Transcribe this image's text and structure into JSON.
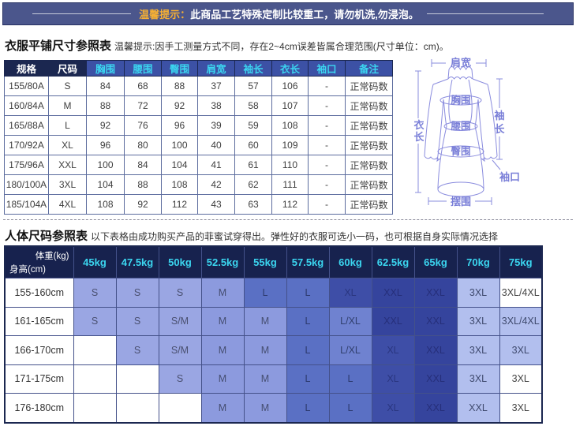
{
  "banner": {
    "highlight": "温馨提示：",
    "text": "此商品工艺特殊定制比较重工，请勿机洗,勿浸泡。"
  },
  "flat_size_section": {
    "title": "衣服平铺尺寸参照表",
    "note": "温馨提示:因手工测量方式不同，存在2~4cm误差皆属合理范围(尺寸单位：cm)。",
    "columns": [
      "规格",
      "尺码",
      "胸围",
      "腰围",
      "臀围",
      "肩宽",
      "袖长",
      "衣长",
      "袖口",
      "备注"
    ],
    "rows": [
      [
        "155/80A",
        "S",
        "84",
        "68",
        "88",
        "37",
        "57",
        "106",
        "-",
        "正常码数"
      ],
      [
        "160/84A",
        "M",
        "88",
        "72",
        "92",
        "38",
        "58",
        "107",
        "-",
        "正常码数"
      ],
      [
        "165/88A",
        "L",
        "92",
        "76",
        "96",
        "39",
        "59",
        "108",
        "-",
        "正常码数"
      ],
      [
        "170/92A",
        "XL",
        "96",
        "80",
        "100",
        "40",
        "60",
        "109",
        "-",
        "正常码数"
      ],
      [
        "175/96A",
        "XXL",
        "100",
        "84",
        "104",
        "41",
        "61",
        "110",
        "-",
        "正常码数"
      ],
      [
        "180/100A",
        "3XL",
        "104",
        "88",
        "108",
        "42",
        "62",
        "111",
        "-",
        "正常码数"
      ],
      [
        "185/104A",
        "4XL",
        "108",
        "92",
        "112",
        "43",
        "63",
        "112",
        "-",
        "正常码数"
      ]
    ]
  },
  "diagram": {
    "labels": {
      "shoulder": "肩宽",
      "bust": "胸围",
      "waist": "腰围",
      "hip": "臀围",
      "cuff": "袖口",
      "hem": "摆围",
      "length_chars": [
        "衣",
        "长"
      ],
      "sleeve_chars": [
        "袖",
        "长"
      ]
    },
    "stroke_color": "#8a8cde"
  },
  "body_size_section": {
    "title": "人体尺码参照表",
    "note": "以下表格由成功购买产品的菲蜜试穿得出。弹性好的衣服可选小一码，也可根据自身实际情况选择",
    "corner": {
      "top": "体重(kg)",
      "bottom": "身高(cm)"
    },
    "weights": [
      "45kg",
      "47.5kg",
      "50kg",
      "52.5kg",
      "55kg",
      "57.5kg",
      "60kg",
      "62.5kg",
      "65kg",
      "70kg",
      "75kg"
    ],
    "rows": [
      {
        "height": "155-160cm",
        "cells": [
          {
            "t": "S",
            "s": "s"
          },
          {
            "t": "S",
            "s": "s"
          },
          {
            "t": "S",
            "s": "s"
          },
          {
            "t": "M",
            "s": "m"
          },
          {
            "t": "L",
            "s": "l"
          },
          {
            "t": "L",
            "s": "l"
          },
          {
            "t": "XL",
            "s": "xl"
          },
          {
            "t": "XXL",
            "s": "xxl"
          },
          {
            "t": "XXL",
            "s": "xxl"
          },
          {
            "t": "3XL",
            "s": "l3"
          },
          {
            "t": "3XL/4XL",
            "s": "w"
          }
        ]
      },
      {
        "height": "161-165cm",
        "cells": [
          {
            "t": "S",
            "s": "s"
          },
          {
            "t": "S",
            "s": "s"
          },
          {
            "t": "S/M",
            "s": "s"
          },
          {
            "t": "M",
            "s": "m"
          },
          {
            "t": "M",
            "s": "m"
          },
          {
            "t": "L",
            "s": "l"
          },
          {
            "t": "L/XL",
            "s": "lxl"
          },
          {
            "t": "XXL",
            "s": "xxl"
          },
          {
            "t": "XXL",
            "s": "xxl"
          },
          {
            "t": "3XL",
            "s": "l3"
          },
          {
            "t": "3XL/4XL",
            "s": "l3"
          }
        ]
      },
      {
        "height": "166-170cm",
        "cells": [
          {
            "t": "",
            "s": "w"
          },
          {
            "t": "S",
            "s": "s"
          },
          {
            "t": "S/M",
            "s": "s"
          },
          {
            "t": "M",
            "s": "m"
          },
          {
            "t": "M",
            "s": "m"
          },
          {
            "t": "L",
            "s": "l"
          },
          {
            "t": "L/XL",
            "s": "lxl"
          },
          {
            "t": "XL",
            "s": "xl"
          },
          {
            "t": "XXL",
            "s": "xxl"
          },
          {
            "t": "3XL",
            "s": "l3"
          },
          {
            "t": "3XL",
            "s": "l3"
          }
        ]
      },
      {
        "height": "171-175cm",
        "cells": [
          {
            "t": "",
            "s": "w"
          },
          {
            "t": "",
            "s": "w"
          },
          {
            "t": "S",
            "s": "s"
          },
          {
            "t": "M",
            "s": "m"
          },
          {
            "t": "M",
            "s": "m"
          },
          {
            "t": "L",
            "s": "l"
          },
          {
            "t": "L",
            "s": "l"
          },
          {
            "t": "XL",
            "s": "xl"
          },
          {
            "t": "XXL",
            "s": "xxl"
          },
          {
            "t": "3XL",
            "s": "l3"
          },
          {
            "t": "3XL",
            "s": "w"
          }
        ]
      },
      {
        "height": "176-180cm",
        "cells": [
          {
            "t": "",
            "s": "w"
          },
          {
            "t": "",
            "s": "w"
          },
          {
            "t": "",
            "s": "w"
          },
          {
            "t": "M",
            "s": "m"
          },
          {
            "t": "M",
            "s": "m"
          },
          {
            "t": "L",
            "s": "l"
          },
          {
            "t": "L",
            "s": "l"
          },
          {
            "t": "XL",
            "s": "xl"
          },
          {
            "t": "XXL",
            "s": "xxl"
          },
          {
            "t": "XXL",
            "s": "l3"
          },
          {
            "t": "3XL",
            "s": "w"
          }
        ]
      }
    ]
  },
  "colors": {
    "banner_bg": "#4b568c",
    "banner_accent": "#f6b033",
    "header_dark": "#1b2750",
    "header_blue": "#3c51a5",
    "header_cyan_text": "#3bd6f0",
    "cell_light": "#9aa6e3",
    "cell_dark": "#35449d",
    "cell_lightest": "#b2bfee",
    "diagram_stroke": "#8a8cde"
  }
}
